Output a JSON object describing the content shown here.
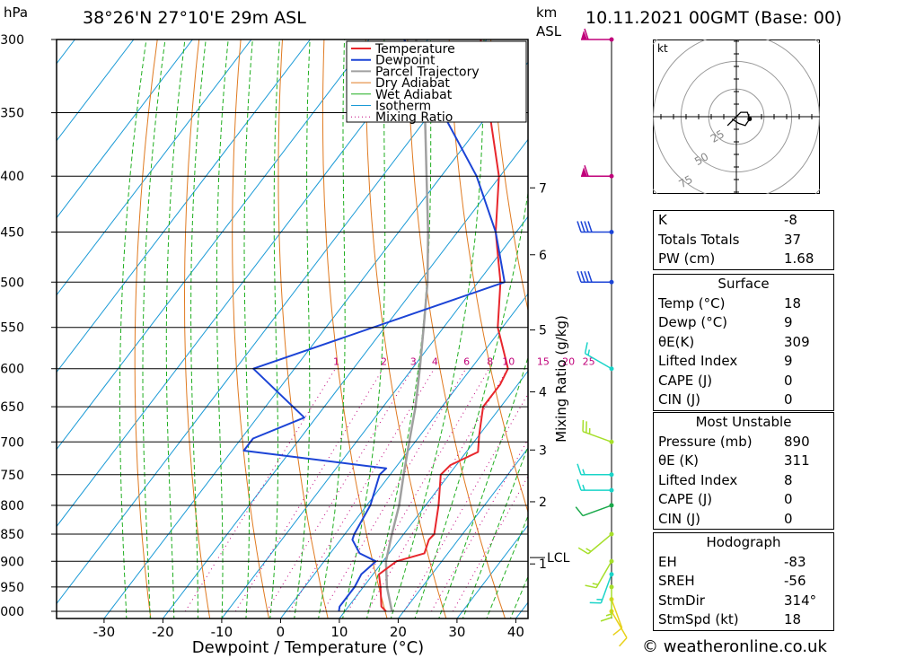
{
  "header": {
    "location": "38°26'N  27°10'E  29m  ASL",
    "hpa_label": "hPa",
    "km_label": "km",
    "asl_label": "ASL",
    "datetime": "10.11.2021  00GMT  (Base: 00)",
    "credit": "© weatheronline.co.uk"
  },
  "chart_data": {
    "type": "line",
    "title": "38°26'N 27°10'E 29m ASL",
    "xlabel": "Dewpoint / Temperature (°C)",
    "ylabel": "hPa",
    "mixing_ratio_label": "Mixing Ratio (g/kg)",
    "x_ticks": [
      -30,
      -20,
      -10,
      0,
      10,
      20,
      30,
      40
    ],
    "pressure_levels": [
      300,
      350,
      400,
      450,
      500,
      550,
      600,
      650,
      700,
      750,
      800,
      850,
      900,
      950,
      1000
    ],
    "km_ticks": [
      {
        "label": "1",
        "p": 905
      },
      {
        "label": "2",
        "p": 794
      },
      {
        "label": "3",
        "p": 712
      },
      {
        "label": "4",
        "p": 630
      },
      {
        "label": "5",
        "p": 553
      },
      {
        "label": "6",
        "p": 472
      },
      {
        "label": "7",
        "p": 410
      }
    ],
    "lcl": {
      "label": "LCL",
      "p": 893
    },
    "mixing_ratio_values": [
      "1",
      "2",
      "3",
      "4",
      "6",
      "8",
      "10",
      "15",
      "20",
      "25"
    ],
    "legend": [
      "Temperature",
      "Dewpoint",
      "Parcel Trajectory",
      "Dry Adiabat",
      "Wet Adiabat",
      "Isotherm",
      "Mixing Ratio"
    ],
    "colors": {
      "temperature": "#e8262c",
      "dewpoint": "#1c44d6",
      "parcel": "#a0a0a0",
      "dry_adiabat": "#e07a20",
      "wet_adiabat": "#1fae1f",
      "isotherm": "#1a9ad6",
      "mixing_ratio": "#c0007a"
    },
    "series": [
      {
        "name": "Temperature",
        "points": [
          [
            1000,
            17
          ],
          [
            990,
            15.6
          ],
          [
            950,
            12.9
          ],
          [
            925,
            11
          ],
          [
            900,
            12.3
          ],
          [
            885,
            16
          ],
          [
            860,
            15
          ],
          [
            850,
            15.2
          ],
          [
            800,
            12.2
          ],
          [
            750,
            8.6
          ],
          [
            735,
            9
          ],
          [
            715,
            12
          ],
          [
            690,
            10
          ],
          [
            650,
            7
          ],
          [
            620,
            7
          ],
          [
            600,
            6.3
          ],
          [
            550,
            -0.8
          ],
          [
            500,
            -6.2
          ],
          [
            450,
            -13.5
          ],
          [
            400,
            -20.2
          ],
          [
            350,
            -30
          ],
          [
            300,
            -41
          ]
        ]
      },
      {
        "name": "Dewpoint",
        "points": [
          [
            1000,
            9
          ],
          [
            990,
            8.5
          ],
          [
            950,
            8.5
          ],
          [
            925,
            8
          ],
          [
            900,
            8.8
          ],
          [
            885,
            5
          ],
          [
            860,
            2
          ],
          [
            850,
            1.6
          ],
          [
            800,
            0.6
          ],
          [
            750,
            -1.8
          ],
          [
            740,
            -1.5
          ],
          [
            713,
            -28
          ],
          [
            695,
            -28
          ],
          [
            665,
            -22
          ],
          [
            600,
            -37
          ],
          [
            500,
            -5.5
          ],
          [
            450,
            -13.5
          ],
          [
            400,
            -24
          ],
          [
            350,
            -38
          ],
          [
            300,
            -54
          ]
        ]
      },
      {
        "name": "Parcel Trajectory",
        "points": [
          [
            1000,
            18
          ],
          [
            950,
            14
          ],
          [
            900,
            10.5
          ],
          [
            850,
            8
          ],
          [
            800,
            5.5
          ],
          [
            750,
            2.3
          ],
          [
            700,
            -1
          ],
          [
            650,
            -4.5
          ],
          [
            600,
            -8.7
          ],
          [
            550,
            -13.4
          ],
          [
            500,
            -18.6
          ],
          [
            450,
            -25
          ],
          [
            400,
            -32.5
          ],
          [
            350,
            -41
          ],
          [
            300,
            -52
          ]
        ]
      }
    ],
    "wind_barbs": [
      {
        "p": 1000,
        "dir": 150,
        "spd": 10,
        "color": "#e8d11a"
      },
      {
        "p": 975,
        "dir": 160,
        "spd": 10,
        "color": "#e8d11a"
      },
      {
        "p": 950,
        "dir": 180,
        "spd": 15,
        "color": "#a6df2a"
      },
      {
        "p": 925,
        "dir": 200,
        "spd": 15,
        "color": "#19d4c8"
      },
      {
        "p": 900,
        "dir": 210,
        "spd": 15,
        "color": "#a6df2a"
      },
      {
        "p": 850,
        "dir": 230,
        "spd": 15,
        "color": "#a6df2a"
      },
      {
        "p": 800,
        "dir": 250,
        "spd": 10,
        "color": "#19a94a"
      },
      {
        "p": 775,
        "dir": 270,
        "spd": 15,
        "color": "#19d4c8"
      },
      {
        "p": 750,
        "dir": 270,
        "spd": 15,
        "color": "#19d4c8"
      },
      {
        "p": 700,
        "dir": 290,
        "spd": 25,
        "color": "#a6df2a"
      },
      {
        "p": 600,
        "dir": 300,
        "spd": 15,
        "color": "#19d4c8"
      },
      {
        "p": 500,
        "dir": 270,
        "spd": 40,
        "color": "#1c44d6"
      },
      {
        "p": 450,
        "dir": 270,
        "spd": 40,
        "color": "#1c44d6"
      },
      {
        "p": 400,
        "dir": 270,
        "spd": 60,
        "color": "#c0007a"
      },
      {
        "p": 300,
        "dir": 270,
        "spd": 60,
        "color": "#c0007a"
      }
    ],
    "hodograph": {
      "unit": "kt",
      "ring_labels": [
        "25",
        "50",
        "75"
      ],
      "points": [
        [
          -4,
          -4
        ],
        [
          -1,
          -1
        ],
        [
          2,
          2
        ],
        [
          5,
          2
        ],
        [
          6,
          -1
        ],
        [
          4,
          -4
        ],
        [
          1,
          -3
        ],
        [
          -2,
          -1
        ]
      ]
    }
  },
  "indices": [
    {
      "k": "K",
      "v": "-8"
    },
    {
      "k": "Totals Totals",
      "v": "37"
    },
    {
      "k": "PW (cm)",
      "v": "1.68"
    }
  ],
  "surface": {
    "title": "Surface",
    "rows": [
      {
        "k": "Temp (°C)",
        "v": "18"
      },
      {
        "k": "Dewp (°C)",
        "v": "9"
      },
      {
        "k": "θE(K)",
        "v": "309"
      },
      {
        "k": "Lifted Index",
        "v": "9"
      },
      {
        "k": "CAPE (J)",
        "v": "0"
      },
      {
        "k": "CIN (J)",
        "v": "0"
      }
    ]
  },
  "most_unstable": {
    "title": "Most Unstable",
    "rows": [
      {
        "k": "Pressure (mb)",
        "v": "890"
      },
      {
        "k": "θE (K)",
        "v": "311"
      },
      {
        "k": "Lifted Index",
        "v": "8"
      },
      {
        "k": "CAPE (J)",
        "v": "0"
      },
      {
        "k": "CIN (J)",
        "v": "0"
      }
    ]
  },
  "hodograph_table": {
    "title": "Hodograph",
    "rows": [
      {
        "k": "EH",
        "v": "-83"
      },
      {
        "k": "SREH",
        "v": "-56"
      },
      {
        "k": "StmDir",
        "v": "314°"
      },
      {
        "k": "StmSpd (kt)",
        "v": "18"
      }
    ]
  }
}
